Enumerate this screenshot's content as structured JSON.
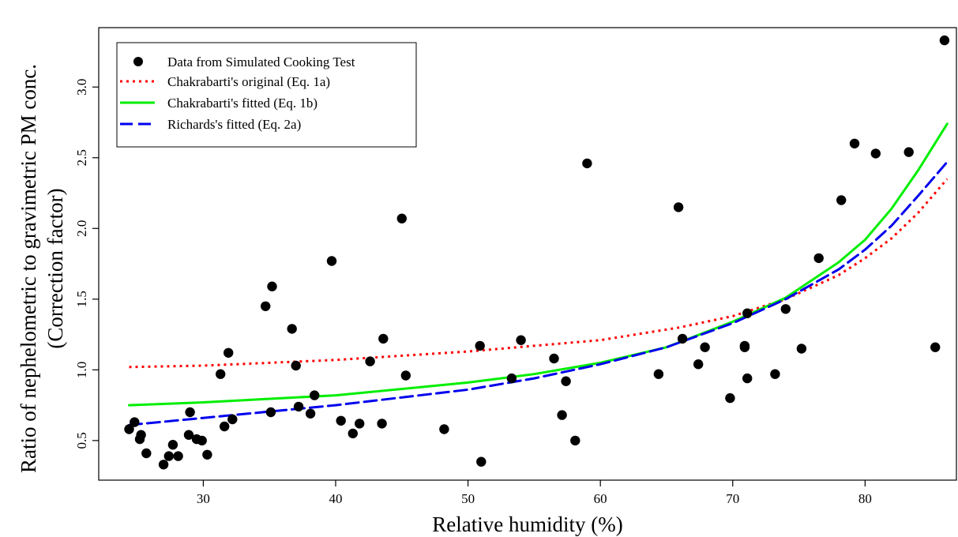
{
  "chart_data": {
    "type": "scatter",
    "xlabel": "Relative humidity (%)",
    "ylabel_line1": "Ratio of nephelometric to gravimetric PM conc.",
    "ylabel_line2": "(Correction factor)",
    "xlim": [
      22.1,
      86.9
    ],
    "ylim": [
      0.22,
      3.42
    ],
    "xticks": [
      30,
      40,
      50,
      60,
      70,
      80
    ],
    "yticks": [
      0.5,
      1.0,
      1.5,
      2.0,
      2.5,
      3.0
    ],
    "xtick_labels": [
      "30",
      "40",
      "50",
      "60",
      "70",
      "80"
    ],
    "ytick_labels": [
      "0.5",
      "1.0",
      "1.5",
      "2.0",
      "2.5",
      "3.0"
    ],
    "grid": false,
    "legend_position": "top-left",
    "legend": [
      {
        "label": "Data from Simulated Cooking Test",
        "style": "point",
        "color": "#000000"
      },
      {
        "label": "Chakrabarti's original (Eq. 1a)",
        "style": "dotted",
        "color": "#ff0000"
      },
      {
        "label": "Chakrabarti's fitted (Eq. 1b)",
        "style": "solid",
        "color": "#00ee00"
      },
      {
        "label": "Richards's fitted (Eq. 2a)",
        "style": "dashed",
        "color": "#0000ee"
      }
    ],
    "points": [
      [
        24.4,
        0.58
      ],
      [
        24.8,
        0.63
      ],
      [
        25.2,
        0.51
      ],
      [
        25.3,
        0.54
      ],
      [
        25.7,
        0.41
      ],
      [
        27.0,
        0.33
      ],
      [
        27.4,
        0.39
      ],
      [
        27.7,
        0.47
      ],
      [
        28.1,
        0.39
      ],
      [
        28.9,
        0.54
      ],
      [
        29.0,
        0.7
      ],
      [
        29.5,
        0.51
      ],
      [
        29.9,
        0.5
      ],
      [
        30.3,
        0.4
      ],
      [
        31.3,
        0.97
      ],
      [
        31.6,
        0.6
      ],
      [
        31.9,
        1.12
      ],
      [
        32.2,
        0.65
      ],
      [
        34.7,
        1.45
      ],
      [
        35.1,
        0.7
      ],
      [
        35.2,
        1.59
      ],
      [
        36.7,
        1.29
      ],
      [
        37.0,
        1.03
      ],
      [
        37.2,
        0.74
      ],
      [
        38.1,
        0.69
      ],
      [
        38.4,
        0.82
      ],
      [
        39.7,
        1.77
      ],
      [
        40.4,
        0.64
      ],
      [
        41.3,
        0.55
      ],
      [
        41.8,
        0.62
      ],
      [
        42.6,
        1.06
      ],
      [
        43.5,
        0.62
      ],
      [
        43.6,
        1.22
      ],
      [
        45.0,
        2.07
      ],
      [
        45.3,
        0.96
      ],
      [
        48.2,
        0.58
      ],
      [
        50.9,
        1.17
      ],
      [
        51.0,
        0.35
      ],
      [
        53.3,
        0.94
      ],
      [
        54.0,
        1.21
      ],
      [
        56.5,
        1.08
      ],
      [
        57.1,
        0.68
      ],
      [
        57.4,
        0.92
      ],
      [
        58.1,
        0.5
      ],
      [
        59.0,
        2.46
      ],
      [
        64.4,
        0.97
      ],
      [
        65.9,
        2.15
      ],
      [
        66.2,
        1.22
      ],
      [
        67.4,
        1.04
      ],
      [
        67.9,
        1.16
      ],
      [
        69.8,
        0.8
      ],
      [
        70.9,
        1.16
      ],
      [
        70.9,
        1.17
      ],
      [
        71.1,
        0.94
      ],
      [
        71.1,
        1.4
      ],
      [
        73.2,
        0.97
      ],
      [
        74.0,
        1.43
      ],
      [
        75.2,
        1.15
      ],
      [
        76.5,
        1.79
      ],
      [
        78.2,
        2.2
      ],
      [
        79.2,
        2.6
      ],
      [
        80.8,
        2.53
      ],
      [
        83.3,
        2.54
      ],
      [
        85.3,
        1.16
      ],
      [
        86.0,
        3.33
      ]
    ],
    "series": [
      {
        "name": "Chakrabarti's original (Eq. 1a)",
        "color": "#ff0000",
        "dash": "dotted",
        "x": [
          24.4,
          30,
          40,
          50,
          60,
          66,
          70,
          74,
          78,
          80,
          82,
          84,
          86.2
        ],
        "y": [
          1.02,
          1.03,
          1.07,
          1.13,
          1.21,
          1.3,
          1.38,
          1.5,
          1.67,
          1.79,
          1.93,
          2.11,
          2.35
        ]
      },
      {
        "name": "Chakrabarti's fitted (Eq. 1b)",
        "color": "#00ee00",
        "dash": "solid",
        "x": [
          24.4,
          30,
          40,
          50,
          55,
          60,
          65,
          70,
          74,
          78,
          80,
          82,
          84,
          86.2
        ],
        "y": [
          0.75,
          0.77,
          0.82,
          0.91,
          0.97,
          1.05,
          1.16,
          1.34,
          1.51,
          1.76,
          1.92,
          2.14,
          2.41,
          2.74
        ]
      },
      {
        "name": "Richards's fitted (Eq. 2a)",
        "color": "#0000ee",
        "dash": "dashed",
        "x": [
          24.4,
          30,
          40,
          50,
          55,
          60,
          65,
          70,
          74,
          78,
          80,
          82,
          84,
          86.2
        ],
        "y": [
          0.61,
          0.66,
          0.75,
          0.86,
          0.94,
          1.04,
          1.16,
          1.33,
          1.5,
          1.71,
          1.85,
          2.02,
          2.23,
          2.47
        ]
      }
    ]
  }
}
